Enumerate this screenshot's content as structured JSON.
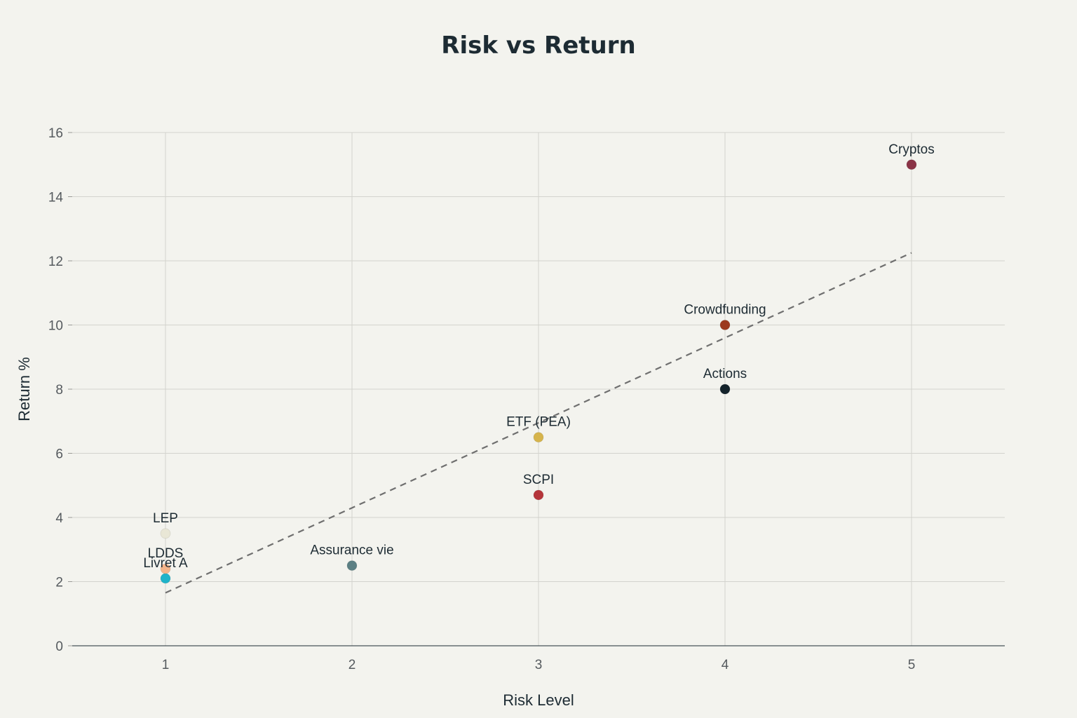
{
  "chart_data": {
    "type": "scatter",
    "title": "Risk vs Return",
    "xlabel": "Risk Level",
    "ylabel": "Return %",
    "xlim": [
      0.5,
      5.5
    ],
    "ylim": [
      0,
      16
    ],
    "x_ticks": [
      1,
      2,
      3,
      4,
      5
    ],
    "y_ticks": [
      0,
      2,
      4,
      6,
      8,
      10,
      12,
      14,
      16
    ],
    "grid": true,
    "legend": "none",
    "points": [
      {
        "label": "Livret A",
        "x": 1,
        "y": 2.1,
        "color": "#1fb3c9"
      },
      {
        "label": "LDDS",
        "x": 1,
        "y": 2.4,
        "color": "#f3b48a"
      },
      {
        "label": "LEP",
        "x": 1,
        "y": 3.5,
        "color": "#e9e7d6"
      },
      {
        "label": "Assurance vie",
        "x": 2,
        "y": 2.5,
        "color": "#5b7f83"
      },
      {
        "label": "SCPI",
        "x": 3,
        "y": 4.7,
        "color": "#b5353a"
      },
      {
        "label": "ETF (PEA)",
        "x": 3,
        "y": 6.5,
        "color": "#d6b44c"
      },
      {
        "label": "Actions",
        "x": 4,
        "y": 8,
        "color": "#14232b"
      },
      {
        "label": "Crowdfunding",
        "x": 4,
        "y": 10,
        "color": "#9c3a1f"
      },
      {
        "label": "Cryptos",
        "x": 5,
        "y": 15,
        "color": "#8a3346"
      }
    ],
    "trendline": {
      "style": "dashed",
      "color": "#6f6f6f",
      "from": {
        "x": 1,
        "y": 1.65
      },
      "to": {
        "x": 5,
        "y": 12.25
      }
    }
  }
}
